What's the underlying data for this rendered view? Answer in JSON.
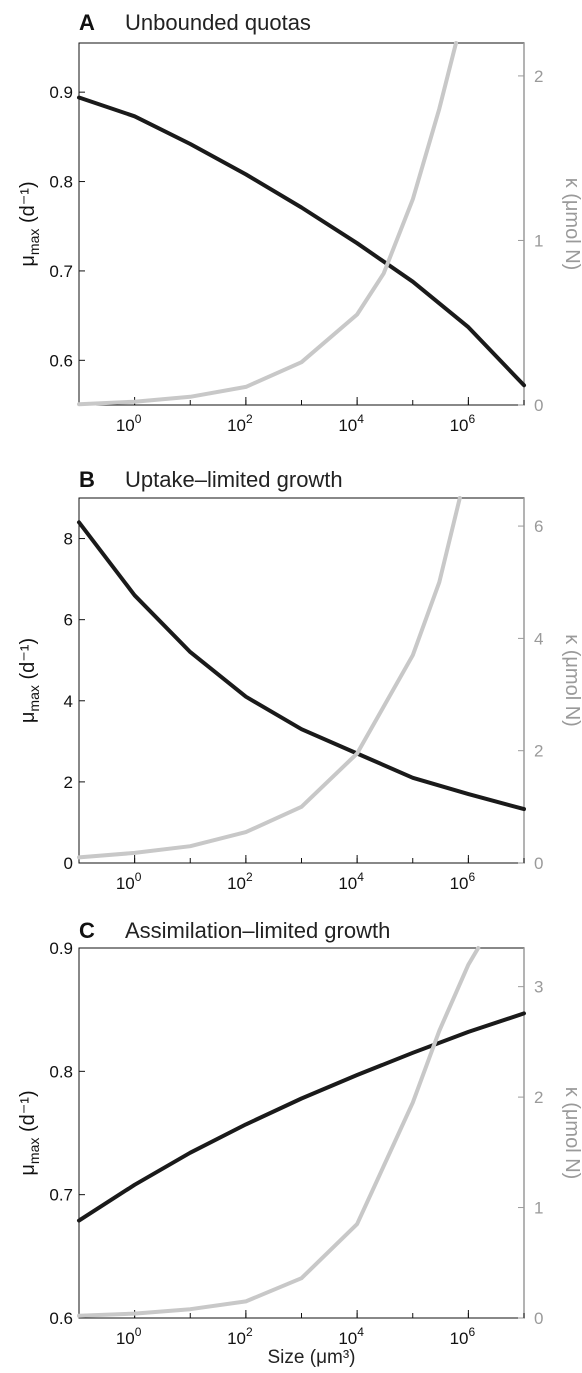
{
  "colors": {
    "mu_line": "#1a1a1a",
    "kappa_line": "#c8c8c8",
    "left_axis": "#111111",
    "right_axis": "#9a9a9a"
  },
  "xlabel": "Size (μm³)",
  "chart_data": [
    {
      "type": "line",
      "letter": "A",
      "title": "Unbounded quotas",
      "xlabel": "",
      "ylabel_left": {
        "base": "μ",
        "sub": "max",
        "unit": "(d⁻¹)"
      },
      "ylabel_right": "κ (μmol N)",
      "x_scale": "log",
      "xlim": [
        0.1,
        10000000
      ],
      "x_ticks": [
        {
          "value": 1,
          "base": "10",
          "exp": "0"
        },
        {
          "value": 100,
          "base": "10",
          "exp": "2"
        },
        {
          "value": 10000,
          "base": "10",
          "exp": "4"
        },
        {
          "value": 1000000,
          "base": "10",
          "exp": "6"
        }
      ],
      "ylim_left": [
        0.55,
        0.955
      ],
      "yticks_left": [
        "0.6",
        "0.7",
        "0.8",
        "0.9"
      ],
      "ylim_right": [
        0,
        2.2
      ],
      "yticks_right": [
        "0",
        "1",
        "2"
      ],
      "series": [
        {
          "axis": "left",
          "x": [
            0.1,
            1,
            10,
            100,
            1000,
            10000,
            100000,
            1000000,
            10000000
          ],
          "values": [
            0.894,
            0.873,
            0.842,
            0.808,
            0.771,
            0.731,
            0.688,
            0.637,
            0.572
          ]
        },
        {
          "axis": "right",
          "x": [
            0.1,
            1,
            10,
            100,
            1000,
            10000,
            30000,
            100000,
            300000,
            600000
          ],
          "values": [
            0.005,
            0.02,
            0.05,
            0.11,
            0.26,
            0.55,
            0.8,
            1.25,
            1.8,
            2.2
          ]
        }
      ]
    },
    {
      "type": "line",
      "letter": "B",
      "title": "Uptake–limited growth",
      "xlabel": "",
      "ylabel_left": {
        "base": "μ",
        "sub": "max",
        "unit": "(d⁻¹)"
      },
      "ylabel_right": "κ (μmol N)",
      "x_scale": "log",
      "xlim": [
        0.1,
        10000000
      ],
      "x_ticks": [
        {
          "value": 1,
          "base": "10",
          "exp": "0"
        },
        {
          "value": 100,
          "base": "10",
          "exp": "2"
        },
        {
          "value": 10000,
          "base": "10",
          "exp": "4"
        },
        {
          "value": 1000000,
          "base": "10",
          "exp": "6"
        }
      ],
      "ylim_left": [
        0,
        9
      ],
      "yticks_left": [
        "0",
        "2",
        "4",
        "6",
        "8"
      ],
      "ylim_right": [
        0,
        6.5
      ],
      "yticks_right": [
        "0",
        "2",
        "4",
        "6"
      ],
      "series": [
        {
          "axis": "left",
          "x": [
            0.1,
            1,
            10,
            100,
            1000,
            10000,
            100000,
            1000000,
            10000000
          ],
          "values": [
            8.4,
            6.6,
            5.2,
            4.1,
            3.3,
            2.7,
            2.1,
            1.7,
            1.33
          ]
        },
        {
          "axis": "right",
          "x": [
            0.1,
            1,
            10,
            100,
            1000,
            10000,
            100000,
            300000,
            700000
          ],
          "values": [
            0.1,
            0.18,
            0.3,
            0.55,
            1.0,
            1.95,
            3.7,
            5.0,
            6.5
          ]
        }
      ]
    },
    {
      "type": "line",
      "letter": "C",
      "title": "Assimilation–limited growth",
      "xlabel": "Size (μm³)",
      "ylabel_left": {
        "base": "μ",
        "sub": "max",
        "unit": "(d⁻¹)"
      },
      "ylabel_right": "κ (μmol N)",
      "x_scale": "log",
      "xlim": [
        0.1,
        10000000
      ],
      "x_ticks": [
        {
          "value": 1,
          "base": "10",
          "exp": "0"
        },
        {
          "value": 100,
          "base": "10",
          "exp": "2"
        },
        {
          "value": 10000,
          "base": "10",
          "exp": "4"
        },
        {
          "value": 1000000,
          "base": "10",
          "exp": "6"
        }
      ],
      "ylim_left": [
        0.6,
        0.9
      ],
      "yticks_left": [
        "0.6",
        "0.7",
        "0.8",
        "0.9"
      ],
      "ylim_right": [
        0,
        3.35
      ],
      "yticks_right": [
        "0",
        "1",
        "2",
        "3"
      ],
      "series": [
        {
          "axis": "left",
          "x": [
            0.1,
            1,
            10,
            100,
            1000,
            10000,
            100000,
            1000000,
            10000000
          ],
          "values": [
            0.679,
            0.708,
            0.734,
            0.757,
            0.778,
            0.797,
            0.815,
            0.832,
            0.847
          ]
        },
        {
          "axis": "right",
          "x": [
            0.1,
            1,
            10,
            100,
            1000,
            10000,
            100000,
            300000,
            1000000,
            1500000
          ],
          "values": [
            0.02,
            0.04,
            0.08,
            0.15,
            0.36,
            0.85,
            1.95,
            2.6,
            3.2,
            3.35
          ]
        }
      ]
    }
  ]
}
